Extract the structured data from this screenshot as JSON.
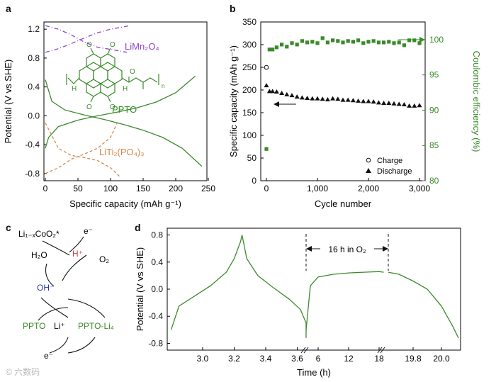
{
  "panels": {
    "a": "a",
    "b": "b",
    "c": "c",
    "d": "d"
  },
  "watermark": "© 六数码",
  "chart_data": [
    {
      "id": "a",
      "type": "line",
      "xlabel": "Specific capacity (mAh g⁻¹)",
      "ylabel": "Potential (V vs SHE)",
      "xlim": [
        0,
        250
      ],
      "ylim": [
        -0.9,
        1.3
      ],
      "xticks": [
        "0",
        "50",
        "100",
        "150",
        "200",
        "250"
      ],
      "yticks": [
        "-0.8",
        "-0.4",
        "0.0",
        "0.4",
        "0.8",
        "1.2"
      ],
      "annotations": {
        "limn": "LiMn₂O₄",
        "ppto": "PPTO",
        "liti": "LiTi₂(PO₄)₃"
      },
      "colors": {
        "limn": "#8e44c9",
        "ppto": "#3a8a2a",
        "liti": "#d4874a"
      },
      "series": [
        {
          "curve": "limn_charge",
          "x": [
            0,
            20,
            40,
            60,
            80,
            100,
            125
          ],
          "y": [
            1.25,
            1.2,
            1.12,
            1.02,
            0.95,
            0.92,
            0.88
          ]
        },
        {
          "curve": "limn_discharge",
          "x": [
            0,
            20,
            40,
            60,
            80,
            100,
            130
          ],
          "y": [
            0.88,
            0.93,
            1.0,
            1.08,
            1.15,
            1.2,
            1.25
          ]
        },
        {
          "curve": "ppto_discharge",
          "x": [
            0,
            10,
            30,
            60,
            90,
            120,
            150,
            180,
            210,
            240
          ],
          "y": [
            0.5,
            0.2,
            0.08,
            0.01,
            -0.05,
            -0.12,
            -0.2,
            -0.3,
            -0.45,
            -0.7
          ]
        },
        {
          "curve": "ppto_charge",
          "x": [
            0,
            5,
            20,
            50,
            80,
            110,
            140,
            170,
            200,
            230
          ],
          "y": [
            -0.45,
            -0.3,
            -0.15,
            -0.06,
            0.0,
            0.05,
            0.11,
            0.19,
            0.32,
            0.55
          ]
        },
        {
          "curve": "liti_charge",
          "x": [
            0,
            20,
            40,
            60,
            80,
            100,
            115
          ],
          "y": [
            -0.1,
            -0.45,
            -0.55,
            -0.58,
            -0.62,
            -0.72,
            -0.85
          ]
        },
        {
          "curve": "liti_discharge",
          "x": [
            0,
            20,
            40,
            60,
            80,
            100,
            110
          ],
          "y": [
            -0.8,
            -0.72,
            -0.6,
            -0.53,
            -0.45,
            -0.3,
            -0.1
          ]
        }
      ]
    },
    {
      "id": "b",
      "type": "scatter",
      "xlabel": "Cycle number",
      "ylabel": "Specific capacity (mAh g⁻¹)",
      "y2label": "Coulombic efficiency (%)",
      "xlim": [
        0,
        3000
      ],
      "ylim": [
        0,
        350
      ],
      "y2lim": [
        80,
        102.5
      ],
      "xticks": [
        "0",
        "1,000",
        "2,000",
        "3,000"
      ],
      "yticks": [
        "0",
        "50",
        "100",
        "150",
        "200",
        "250",
        "300",
        "350"
      ],
      "y2ticks": [
        "80",
        "85",
        "90",
        "95",
        "100"
      ],
      "legend": {
        "charge": "Charge",
        "discharge": "Discharge"
      },
      "colors": {
        "ce": "#3a8a2a"
      },
      "series": [
        {
          "name": "Charge",
          "x": [
            0
          ],
          "y": [
            250
          ]
        },
        {
          "name": "Discharge",
          "x": [
            0,
            60,
            120,
            200,
            300,
            400,
            500,
            600,
            700,
            800,
            900,
            1000,
            1100,
            1200,
            1300,
            1400,
            1500,
            1600,
            1700,
            1800,
            1900,
            2000,
            2100,
            2200,
            2300,
            2400,
            2500,
            2600,
            2700,
            2800,
            2900,
            3000
          ],
          "y": [
            210,
            197,
            197,
            196,
            193,
            190,
            188,
            185,
            183,
            182,
            181,
            181,
            180,
            179,
            181,
            180,
            178,
            178,
            177,
            176,
            175,
            175,
            174,
            172,
            171,
            171,
            170,
            169,
            168,
            165,
            165,
            166
          ]
        },
        {
          "name": "Coulombic efficiency",
          "x": [
            0,
            60,
            120,
            200,
            300,
            400,
            500,
            600,
            700,
            800,
            900,
            1000,
            1100,
            1200,
            1300,
            1400,
            1500,
            1600,
            1700,
            1800,
            1900,
            2000,
            2100,
            2200,
            2300,
            2400,
            2500,
            2600,
            2700,
            2800,
            2900,
            3000
          ],
          "y": [
            84.5,
            98.6,
            98.6,
            98.9,
            99.3,
            99.0,
            99.5,
            99.3,
            99.8,
            99.6,
            99.7,
            99.5,
            100.2,
            99.6,
            99.9,
            99.8,
            99.6,
            99.8,
            99.7,
            99.9,
            99.5,
            99.7,
            99.8,
            99.6,
            99.6,
            99.7,
            99.5,
            99.6,
            99.2,
            99.9,
            99.9,
            99.5
          ]
        }
      ]
    },
    {
      "id": "d",
      "type": "line",
      "xlabel": "Time (h)",
      "ylabel": "Potential (V vs SHE)",
      "ylim": [
        -0.9,
        0.9
      ],
      "yticks": [
        "-0.8",
        "-0.4",
        "0.0",
        "0.4",
        "0.8"
      ],
      "xticks": [
        "3.0",
        "3.2",
        "3.4",
        "3.6",
        "6",
        "12",
        "18",
        "19.8",
        "20.0"
      ],
      "annotation": "16 h in O₂",
      "colors": {
        "line": "#3a8a2a"
      },
      "segments": [
        {
          "x": [
            2.8,
            2.85,
            2.95,
            3.05,
            3.15,
            3.2,
            3.24,
            3.25
          ],
          "y": [
            -0.6,
            -0.25,
            -0.1,
            0.05,
            0.25,
            0.45,
            0.7,
            0.8
          ]
        },
        {
          "x": [
            3.25,
            3.28,
            3.35,
            3.45,
            3.55,
            3.62,
            3.68,
            3.72
          ],
          "y": [
            0.8,
            0.45,
            0.2,
            0.02,
            -0.15,
            -0.3,
            -0.5,
            -0.72
          ]
        },
        {
          "x": [
            2.5,
            3.5,
            6,
            9,
            12,
            15,
            18,
            18.9
          ],
          "y": [
            -0.6,
            0.05,
            0.18,
            0.22,
            0.24,
            0.25,
            0.26,
            0.25
          ]
        },
        {
          "x": [
            19.6,
            19.7,
            19.8,
            19.9,
            20.0,
            20.08,
            20.12
          ],
          "y": [
            0.25,
            0.22,
            0.12,
            0.0,
            -0.25,
            -0.55,
            -0.72
          ]
        }
      ]
    }
  ],
  "scheme_c": {
    "licoo2": "Li₁₋ₓCoO₂*",
    "e_top": "e⁻",
    "h2o": "H₂O",
    "hplus": "H⁺",
    "o2": "O₂",
    "oh": "OH⁻",
    "ppto": "PPTO",
    "li": "Li⁺",
    "pptoli": "PPTO-Li₄",
    "e_bottom": "e⁻",
    "colors": {
      "hplus": "#d04040",
      "oh": "#2a3aa0",
      "ppto": "#3a8a2a"
    }
  },
  "structure_a": {
    "n_label": "n",
    "nh_left": "H",
    "nh_right": "H",
    "o_labels": [
      "O",
      "O",
      "O",
      "O",
      "O"
    ]
  }
}
